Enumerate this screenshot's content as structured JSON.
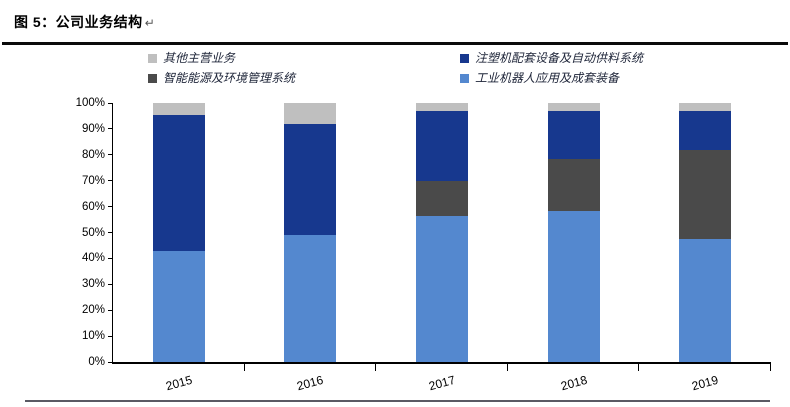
{
  "figure": {
    "title": "图 5：公司业务结构",
    "paragraph_mark": "↵"
  },
  "chart_data": {
    "type": "bar",
    "variant": "stacked-100-percent",
    "title": "公司业务结构",
    "categories": [
      "2015",
      "2016",
      "2017",
      "2018",
      "2019"
    ],
    "series": [
      {
        "name": "工业机器人应用及成套装备",
        "color": "#5488CF",
        "values": [
          43,
          49,
          56.5,
          58.5,
          47.5
        ]
      },
      {
        "name": "智能能源及环境管理系统",
        "color": "#4A4A4A",
        "values": [
          0,
          0,
          13.5,
          20,
          34.5
        ]
      },
      {
        "name": "注塑机配套设备及自动供料系统",
        "color": "#17388E",
        "values": [
          52.5,
          43,
          27,
          18.5,
          15
        ]
      },
      {
        "name": "其他主营业务",
        "color": "#BFBFBF",
        "values": [
          4.5,
          8,
          3,
          3,
          3
        ]
      }
    ],
    "legend": {
      "position": "top",
      "items": [
        {
          "label": "其他主营业务",
          "color": "#BFBFBF"
        },
        {
          "label": "注塑机配套设备及自动供料系统",
          "color": "#17388E"
        },
        {
          "label": "智能能源及环境管理系统",
          "color": "#4A4A4A"
        },
        {
          "label": "工业机器人应用及成套装备",
          "color": "#5488CF"
        }
      ]
    },
    "yticks": [
      "0%",
      "10%",
      "20%",
      "30%",
      "40%",
      "50%",
      "60%",
      "70%",
      "80%",
      "90%",
      "100%"
    ],
    "ylim": [
      0,
      100
    ],
    "grid": false,
    "xlabel": "",
    "ylabel": ""
  }
}
